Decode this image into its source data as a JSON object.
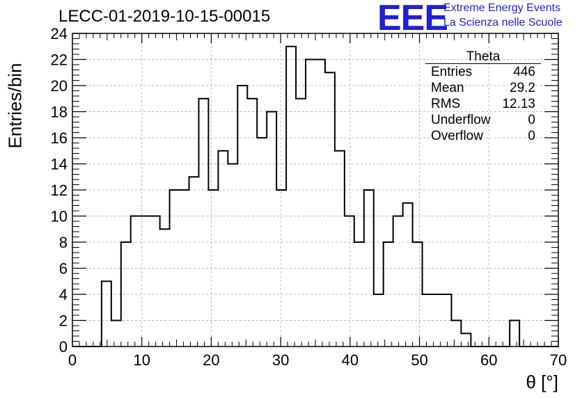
{
  "chart_data": {
    "type": "bar",
    "title": "LECC-01-2019-10-15-00015",
    "xlabel": "θ [°]",
    "ylabel": "Entries/bin",
    "xlim": [
      0,
      70
    ],
    "ylim": [
      0,
      24
    ],
    "grid": true,
    "bin_width": 1.4,
    "bin_edges_start": 0,
    "values": [
      0,
      0,
      0,
      5,
      2,
      8,
      10,
      10,
      10,
      9,
      12,
      12,
      13,
      19,
      12,
      15,
      14,
      20,
      19,
      16,
      18,
      12,
      23,
      19,
      22,
      22,
      21,
      15,
      10,
      8,
      12,
      4,
      8,
      10,
      11,
      8,
      4,
      4,
      4,
      2,
      1,
      0,
      0,
      0,
      0,
      2,
      0,
      0,
      0,
      0
    ],
    "x_ticks": [
      "0",
      "10",
      "20",
      "30",
      "40",
      "50",
      "60",
      "70"
    ],
    "y_ticks": [
      "0",
      "2",
      "4",
      "6",
      "8",
      "10",
      "12",
      "14",
      "16",
      "18",
      "20",
      "22",
      "24"
    ]
  },
  "logo": {
    "text": "EEE",
    "line1": "Extreme Energy Events",
    "line2": "La Scienza nelle Scuole",
    "color": "#1f1fd8"
  },
  "stats": {
    "name": "Theta",
    "rows": [
      {
        "label": "Entries",
        "value": "446"
      },
      {
        "label": "Mean",
        "value": "29.2"
      },
      {
        "label": "RMS",
        "value": "12.13"
      },
      {
        "label": "Underflow",
        "value": "0"
      },
      {
        "label": "Overflow",
        "value": "0"
      }
    ]
  }
}
